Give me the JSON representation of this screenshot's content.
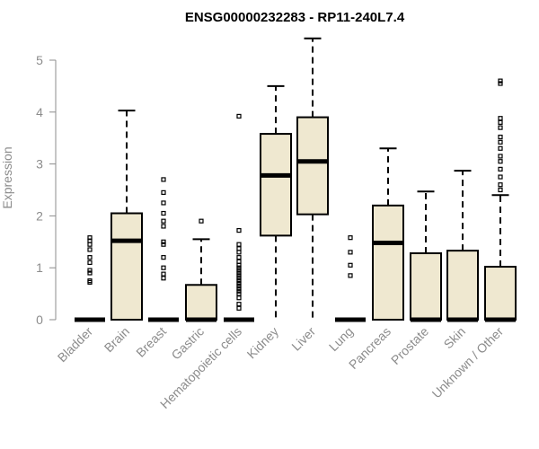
{
  "chart_data": {
    "type": "boxplot",
    "title": "ENSG00000232283 - RP11-240L7.4",
    "xlabel": "",
    "ylabel": "Expression",
    "ylim": [
      0,
      5.5
    ],
    "yticks": [
      0,
      1,
      2,
      3,
      4,
      5
    ],
    "box_fill": "#efe8d0",
    "box_stroke": "#000000",
    "categories": [
      "Bladder",
      "Brain",
      "Breast",
      "Gastric",
      "Hematopoietic cells",
      "Kidney",
      "Liver",
      "Lung",
      "Pancreas",
      "Prostate",
      "Skin",
      "Unknown / Other"
    ],
    "boxes": [
      {
        "q1": 0,
        "median": 0,
        "q3": 0,
        "whisker_low": 0,
        "whisker_high": 0,
        "outliers": [
          0.72,
          0.75,
          0.9,
          0.95,
          1.1,
          1.2,
          1.35,
          1.45,
          1.52,
          1.58
        ]
      },
      {
        "q1": 0,
        "median": 1.52,
        "q3": 2.05,
        "whisker_low": 0,
        "whisker_high": 4.03,
        "outliers": []
      },
      {
        "q1": 0,
        "median": 0,
        "q3": 0,
        "whisker_low": 0,
        "whisker_high": 0,
        "outliers": [
          0.8,
          0.88,
          1.0,
          1.2,
          1.45,
          1.5,
          1.8,
          1.9,
          2.05,
          2.25,
          2.45,
          2.7
        ]
      },
      {
        "q1": 0,
        "median": 0,
        "q3": 0.67,
        "whisker_low": 0,
        "whisker_high": 1.55,
        "outliers": [
          1.9
        ]
      },
      {
        "q1": 0,
        "median": 0,
        "q3": 0,
        "whisker_low": 0,
        "whisker_high": 0,
        "outliers": [
          0.22,
          0.3,
          0.42,
          0.5,
          0.55,
          0.6,
          0.65,
          0.7,
          0.75,
          0.8,
          0.85,
          0.9,
          0.95,
          1.0,
          1.05,
          1.12,
          1.2,
          1.3,
          1.37,
          1.45,
          1.72,
          3.92
        ]
      },
      {
        "q1": 1.62,
        "median": 2.78,
        "q3": 3.58,
        "whisker_low": 0,
        "whisker_high": 4.5,
        "outliers": []
      },
      {
        "q1": 2.03,
        "median": 3.05,
        "q3": 3.9,
        "whisker_low": 0,
        "whisker_high": 5.42,
        "outliers": []
      },
      {
        "q1": 0,
        "median": 0,
        "q3": 0,
        "whisker_low": 0,
        "whisker_high": 0,
        "outliers": [
          0.85,
          1.05,
          1.3,
          1.58
        ]
      },
      {
        "q1": 0,
        "median": 1.48,
        "q3": 2.2,
        "whisker_low": 0,
        "whisker_high": 3.3,
        "outliers": []
      },
      {
        "q1": 0,
        "median": 0,
        "q3": 1.28,
        "whisker_low": 0,
        "whisker_high": 2.47,
        "outliers": []
      },
      {
        "q1": 0,
        "median": 0,
        "q3": 1.33,
        "whisker_low": 0,
        "whisker_high": 2.87,
        "outliers": []
      },
      {
        "q1": 0,
        "median": 0,
        "q3": 1.02,
        "whisker_low": 0,
        "whisker_high": 2.4,
        "outliers": [
          2.5,
          2.6,
          2.75,
          2.9,
          3.05,
          3.15,
          3.3,
          3.42,
          3.52,
          3.7,
          3.8,
          3.88,
          4.55,
          4.6
        ]
      }
    ]
  }
}
